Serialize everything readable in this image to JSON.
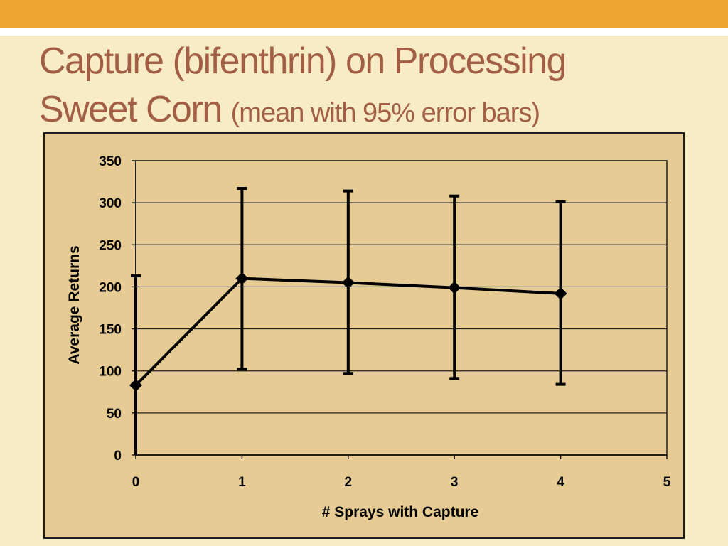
{
  "slide": {
    "title_main_line1": "Capture (bifenthrin) on Processing",
    "title_main_line2": "Sweet Corn",
    "title_sub": "(mean with 95% error bars)",
    "colors": {
      "background": "#f8ecc6",
      "top_bar": "#eea531",
      "title": "#a35f45",
      "plot_area": "#e6cc94"
    }
  },
  "chart_data": {
    "type": "line",
    "title": "",
    "xlabel": "# Sprays with Capture",
    "ylabel": "Average Returns",
    "xlim": [
      0,
      5
    ],
    "ylim": [
      0,
      350
    ],
    "x_ticks": [
      "0",
      "1",
      "2",
      "3",
      "4",
      "5"
    ],
    "y_ticks": [
      "0",
      "50",
      "100",
      "150",
      "200",
      "250",
      "300",
      "350"
    ],
    "grid": "horizontal",
    "legend": "none",
    "marker": "diamond",
    "series": [
      {
        "x": [
          0,
          1,
          2,
          3,
          4
        ],
        "y": [
          83,
          210,
          205,
          199,
          192
        ],
        "error_lower": [
          0,
          102,
          97,
          91,
          84
        ],
        "error_upper": [
          213,
          317,
          314,
          308,
          301
        ]
      }
    ]
  }
}
